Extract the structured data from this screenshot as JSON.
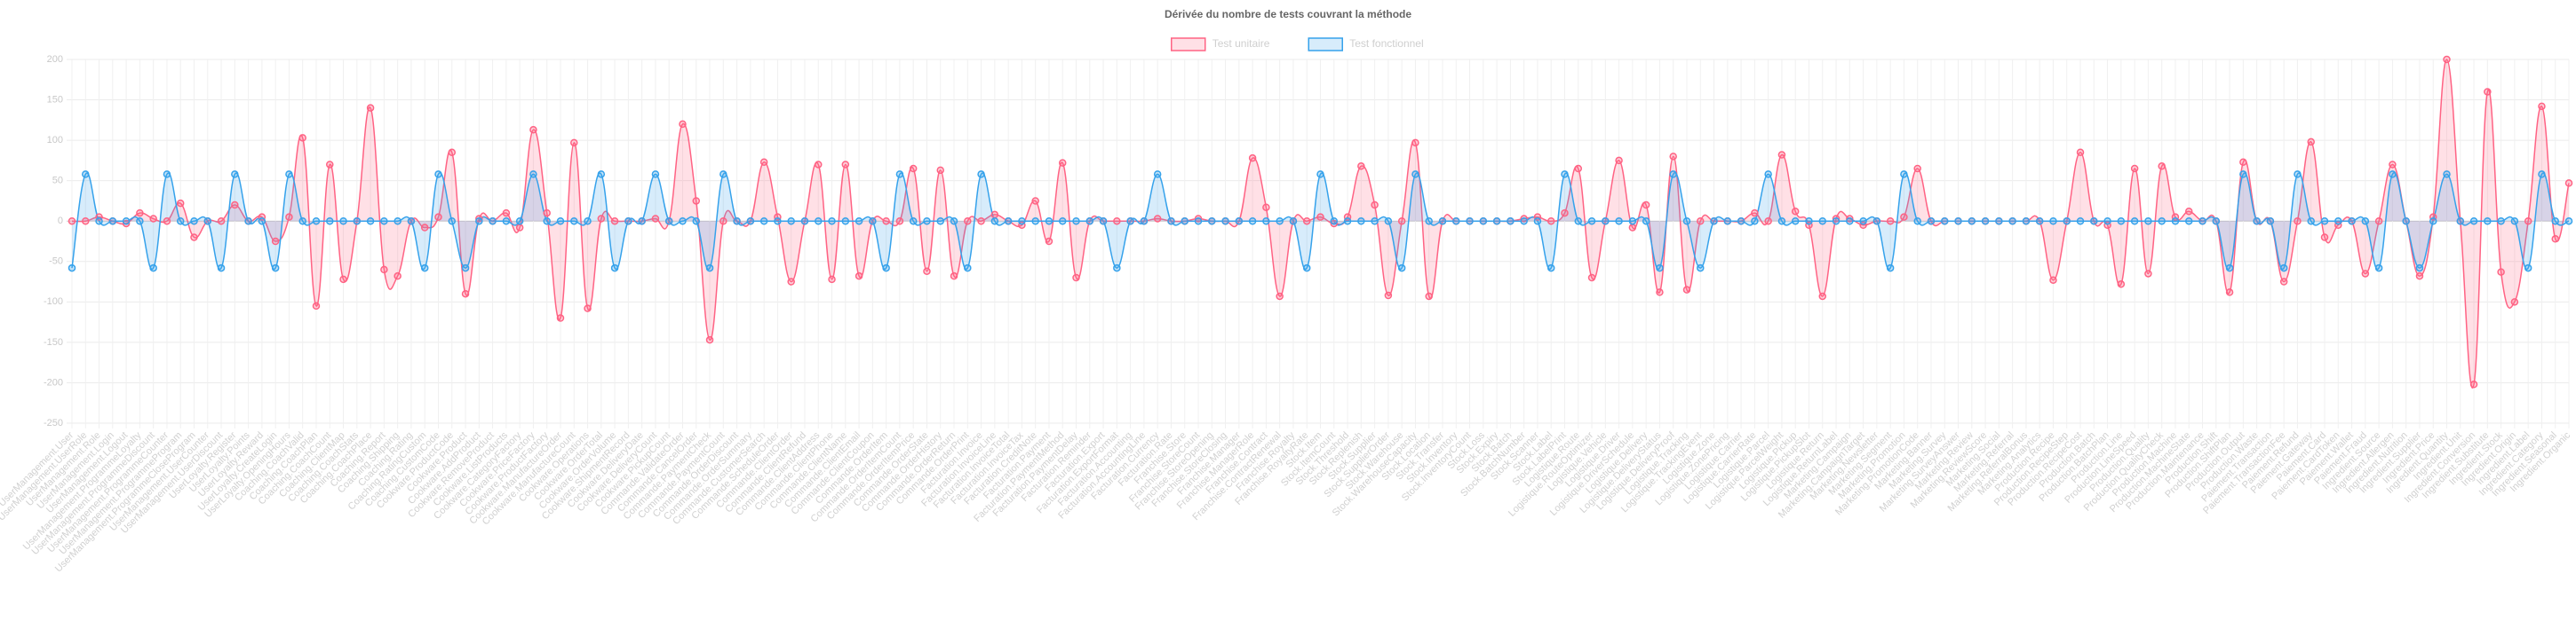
{
  "chart_data": {
    "type": "line",
    "title": "Dérivée du nombre de tests couvrant la méthode",
    "legend": "top",
    "grid": true,
    "ylim": [
      -250,
      200
    ],
    "yticks": [
      -250,
      -200,
      -150,
      -100,
      -50,
      0,
      50,
      100,
      150,
      200
    ],
    "categories": [
      "UserManagement.User",
      "UserManagement.UserRole",
      "UserManagement.Role",
      "UserManagement.Login",
      "UserManagement.Logout",
      "UserManagement.ProgrammeLoyalty",
      "UserManagement.ProgrammeDiscount",
      "UserManagement.ProgrammeCounter",
      "UserManagement.ProgrammeProgram",
      "UserManagement.ProgrammeCloseProgram",
      "UserManagement.UserCounter",
      "UserManagement.UserDiscount",
      "UserLoyalty.Register",
      "UserLoyalty.Points",
      "UserLoyalty.Reward",
      "UserLoyalty.CreateLogin",
      "UserLoyalty.OpeningHours",
      "Coaching.CoachValid",
      "Coaching.CoachPlan",
      "Coaching.CoachCount",
      "Coaching.ClientMap",
      "Coaching.CoachStats",
      "Coaching.CoachPlace",
      "Coaching.Report",
      "Coaching.Shipping",
      "Coaching.Rating",
      "Coaching.RatingCustom",
      "Coaching.CustomCode",
      "Cookware.ProductCode",
      "Cookware.Product",
      "Cookware.AddProduct",
      "Cookware.RemoveProduct",
      "Cookware.ListProducts",
      "Cookware.CategoryFactory",
      "Cookware.PriceFactory",
      "Cookware.ProductFactory",
      "Cookware.ManufactureOrder",
      "Cookware.ManufactureCount",
      "Cookware.Operations",
      "Cookware.OrderTotal",
      "Cookware.OrderVolume",
      "Cookware.ShipmentRecord",
      "Cookware.DeliveryDate",
      "Cookware.DeliveryCount",
      "Cookware.PickupCount",
      "Commande.ValidateOrder",
      "Commande.CancelOrder",
      "Commande.PaymentCheck",
      "Commande.PaymentCount",
      "Commande.OrderDiscount",
      "Commande.OrderSummary",
      "Commande.CustomerSearch",
      "Commande.ScheduleOrder",
      "Commande.ClientOrder",
      "Commande.ClientRefund",
      "Commande.ClientAddress",
      "Commande.ClientPhone",
      "Commande.ClientName",
      "Commande.ClientEmail",
      "Commande.ClientCoupon",
      "Commande.OrderItem",
      "Commande.OrderItemCount",
      "Commande.OrderItemPrice",
      "Commande.OrderState",
      "Commande.OrderHistory",
      "Commande.OrderReturn",
      "Commande.OrderPrint",
      "Facturation.Invoice",
      "Facturation.InvoiceLine",
      "Facturation.InvoiceTotal",
      "Facturation.InvoiceTax",
      "Facturation.CreditNote",
      "Facturation.Payment",
      "Facturation.PaymentMethod",
      "Facturation.PaymentDelay",
      "Facturation.Reminder",
      "Facturation.Export",
      "Facturation.ExportFormat",
      "Facturation.Accounting",
      "Facturation.AccountingLine",
      "Facturation.Currency",
      "Facturation.Rate",
      "Franchise.Store",
      "Franchise.StoreCount",
      "Franchise.StoreOpening",
      "Franchise.StoreClosing",
      "Franchise.Manager",
      "Franchise.ManagerRole",
      "Franchise.Contract",
      "Franchise.ContractRenewal",
      "Franchise.Royalty",
      "Franchise.RoyaltyRate",
      "Stock.Item",
      "Stock.ItemCount",
      "Stock.Threshold",
      "Stock.Replenish",
      "Stock.Supplier",
      "Stock.SupplierOrder",
      "Stock.Warehouse",
      "Stock.WarehouseCapacity",
      "Stock.Location",
      "Stock.Transfer",
      "Stock.Inventory",
      "Stock.InventoryCount",
      "Stock.Loss",
      "Stock.Expiry",
      "Stock.Batch",
      "Stock.BatchNumber",
      "Stock.Scanner",
      "Stock.Label",
      "Stock.LabelPrint",
      "Logistique.Route",
      "Logistique.RouteOptimizer",
      "Logistique.Vehicle",
      "Logistique.Driver",
      "Logistique.DriverSchedule",
      "Logistique.Delivery",
      "Logistique.DeliveryStatus",
      "Logistique.DeliveryProof",
      "Logistique.Tracking",
      "Logistique.TrackingEvent",
      "Logistique.Zone",
      "Logistique.ZonePricing",
      "Logistique.Carrier",
      "Logistique.CarrierRate",
      "Logistique.Parcel",
      "Logistique.ParcelWeight",
      "Logistique.Pickup",
      "Logistique.PickupSlot",
      "Logistique.Return",
      "Logistique.ReturnLabel",
      "Marketing.Campaign",
      "Marketing.CampaignTarget",
      "Marketing.Newsletter",
      "Marketing.Segment",
      "Marketing.Promotion",
      "Marketing.PromotionCode",
      "Marketing.Banner",
      "Marketing.Survey",
      "Marketing.SurveyAnswer",
      "Marketing.Review",
      "Marketing.ReviewScore",
      "Marketing.Social",
      "Marketing.Referral",
      "Marketing.ReferralBonus",
      "Marketing.Analytics",
      "Production.Recipe",
      "Production.RecipeStep",
      "Production.RecipeCost",
      "Production.Batch",
      "Production.BatchPlan",
      "Production.Line",
      "Production.LineSpeed",
      "Production.Quality",
      "Production.QualityCheck",
      "Production.Machine",
      "Production.MachineState",
      "Production.Maintenance",
      "Production.Shift",
      "Production.ShiftPlan",
      "Production.Output",
      "Production.Waste",
      "Paiement.Transaction",
      "Paiement.TransactionFee",
      "Paiement.Refund",
      "Paiement.Gateway",
      "Paiement.Card",
      "Paiement.CardToken",
      "Paiement.Wallet",
      "Paiement.Fraud",
      "Ingredient.Source",
      "Ingredient.Allergen",
      "Ingredient.Nutrition",
      "Ingredient.Supplier",
      "Ingredient.Price",
      "Ingredient.Quantity",
      "Ingredient.Unit",
      "Ingredient.Conversion",
      "Ingredient.Substitute",
      "Ingredient.Stock",
      "Ingredient.Origin",
      "Ingredient.Label",
      "Ingredient.Category",
      "Ingredient.Seasonal",
      "Ingredient.Organic"
    ],
    "series": [
      {
        "name": "Test unitaire",
        "color": "#ff6384",
        "values": [
          0,
          0,
          5,
          0,
          -3,
          10,
          3,
          0,
          22,
          -20,
          0,
          0,
          20,
          0,
          5,
          -25,
          5,
          103,
          -105,
          70,
          -72,
          0,
          140,
          -60,
          -68,
          0,
          -8,
          5,
          85,
          -90,
          3,
          0,
          10,
          -8,
          113,
          10,
          -120,
          97,
          -108,
          3,
          0,
          0,
          0,
          3,
          0,
          120,
          25,
          -147,
          0,
          0,
          0,
          73,
          5,
          -75,
          0,
          70,
          -72,
          70,
          -68,
          0,
          0,
          0,
          65,
          -62,
          63,
          -68,
          0,
          0,
          8,
          0,
          -5,
          25,
          -25,
          72,
          -70,
          0,
          0,
          0,
          0,
          0,
          3,
          0,
          0,
          3,
          0,
          0,
          0,
          78,
          17,
          -93,
          0,
          0,
          5,
          -3,
          5,
          68,
          20,
          -92,
          0,
          97,
          -93,
          0,
          0,
          0,
          0,
          0,
          0,
          3,
          5,
          0,
          10,
          65,
          -70,
          0,
          75,
          -8,
          20,
          -88,
          80,
          -85,
          0,
          0,
          0,
          0,
          10,
          0,
          82,
          12,
          -5,
          -93,
          3,
          3,
          -5,
          0,
          0,
          5,
          65,
          0,
          0,
          0,
          0,
          0,
          0,
          0,
          0,
          0,
          -73,
          0,
          85,
          0,
          -5,
          -78,
          65,
          -65,
          68,
          5,
          12,
          0,
          0,
          -88,
          73,
          0,
          0,
          -75,
          0,
          98,
          -20,
          -5,
          0,
          -65,
          0,
          70,
          0,
          -68,
          5,
          200,
          0,
          -202,
          160,
          -63,
          -100,
          0,
          142,
          -22,
          47
        ]
      },
      {
        "name": "Test fonctionnel",
        "color": "#36a2eb",
        "values": [
          -58,
          58,
          0,
          0,
          0,
          0,
          -58,
          58,
          0,
          0,
          0,
          -58,
          58,
          0,
          0,
          -58,
          58,
          0,
          0,
          0,
          0,
          0,
          0,
          0,
          0,
          0,
          -58,
          58,
          0,
          -58,
          0,
          0,
          0,
          0,
          58,
          0,
          0,
          0,
          0,
          58,
          -58,
          0,
          0,
          58,
          0,
          0,
          0,
          -58,
          58,
          0,
          0,
          0,
          0,
          0,
          0,
          0,
          0,
          0,
          0,
          0,
          -58,
          58,
          0,
          0,
          0,
          0,
          -58,
          58,
          0,
          0,
          0,
          0,
          0,
          0,
          0,
          0,
          0,
          -58,
          0,
          0,
          58,
          0,
          0,
          0,
          0,
          0,
          0,
          0,
          0,
          0,
          0,
          -58,
          58,
          0,
          0,
          0,
          0,
          0,
          -58,
          58,
          0,
          0,
          0,
          0,
          0,
          0,
          0,
          0,
          0,
          -58,
          58,
          0,
          0,
          0,
          0,
          0,
          0,
          -58,
          58,
          0,
          -58,
          0,
          0,
          0,
          0,
          58,
          0,
          0,
          0,
          0,
          0,
          0,
          0,
          0,
          -58,
          58,
          0,
          0,
          0,
          0,
          0,
          0,
          0,
          0,
          0,
          0,
          0,
          0,
          0,
          0,
          0,
          0,
          0,
          0,
          0,
          0,
          0,
          0,
          0,
          -58,
          58,
          0,
          0,
          -58,
          58,
          0,
          0,
          0,
          0,
          0,
          -58,
          58,
          0,
          -58,
          0,
          58,
          0,
          0,
          0,
          0,
          0,
          -58,
          58,
          0,
          0
        ]
      }
    ]
  }
}
